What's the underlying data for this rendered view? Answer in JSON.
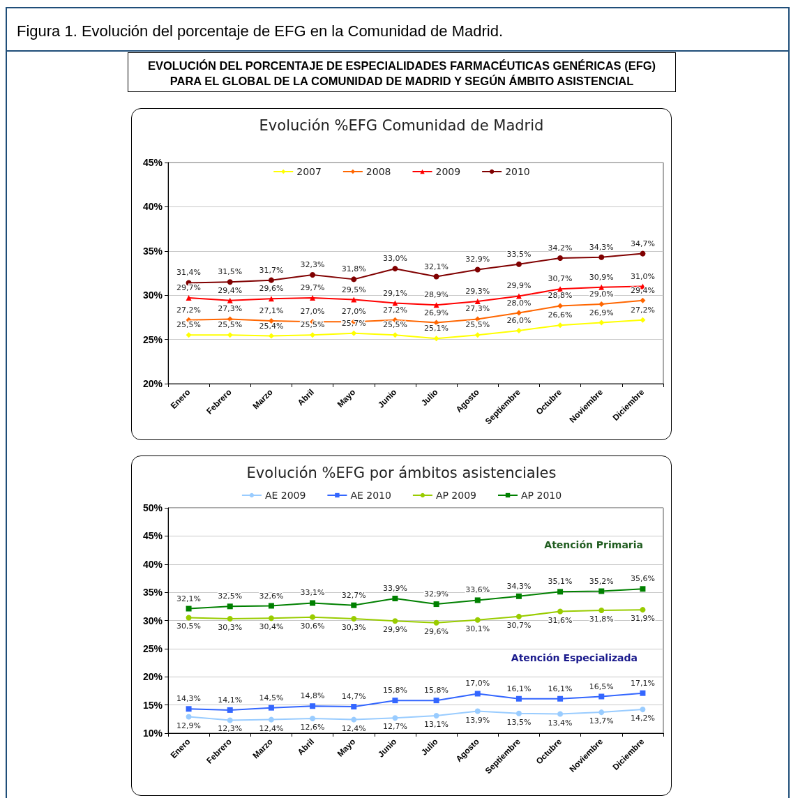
{
  "chart_data": [
    {
      "type": "line",
      "title": "Evolución %EFG Comunidad de Madrid",
      "annotations": [
        "Figura 1.  Evolución del porcentaje de EFG en la Comunidad de Madrid.",
        "EVOLUCIÓN DEL PORCENTAJE DE ESPECIALIDADES FARMACÉUTICAS GENÉRICAS (EFG) PARA EL GLOBAL DE LA COMUNIDAD DE MADRID Y SEGÚN ÁMBITO ASISTENCIAL"
      ],
      "categories": [
        "Enero",
        "Febrero",
        "Marzo",
        "Abril",
        "Mayo",
        "Junio",
        "Julio",
        "Agosto",
        "Septiembre",
        "Octubre",
        "Noviembre",
        "Diciembre"
      ],
      "ylim": [
        20,
        45
      ],
      "yticks": [
        {
          "value": 20,
          "label": "20%"
        },
        {
          "value": 25,
          "label": "25%"
        },
        {
          "value": 30,
          "label": "30%"
        },
        {
          "value": 35,
          "label": "35%"
        },
        {
          "value": 40,
          "label": "40%"
        },
        {
          "value": 45,
          "label": "45%"
        }
      ],
      "grid": "y",
      "legend": "top",
      "series": [
        {
          "name": "2007",
          "color": "#ffff00",
          "marker": "diamond",
          "values": [
            25.5,
            25.5,
            25.4,
            25.5,
            25.7,
            25.5,
            25.1,
            25.5,
            26.0,
            26.6,
            26.9,
            27.2
          ],
          "value_labels": [
            "25,5%",
            "25,5%",
            "25,4%",
            "25,5%",
            "25,7%",
            "25,5%",
            "25,1%",
            "25,5%",
            "26,0%",
            "26,6%",
            "26,9%",
            "27,2%"
          ]
        },
        {
          "name": "2008",
          "color": "#ff6600",
          "marker": "diamond",
          "values": [
            27.2,
            27.3,
            27.1,
            27.0,
            27.0,
            27.2,
            26.9,
            27.3,
            28.0,
            28.8,
            29.0,
            29.4
          ],
          "value_labels": [
            "27,2%",
            "27,3%",
            "27,1%",
            "27,0%",
            "27,0%",
            "27,2%",
            "26,9%",
            "27,3%",
            "28,0%",
            "28,8%",
            "29,0%",
            "29,4%"
          ]
        },
        {
          "name": "2009",
          "color": "#ff0000",
          "marker": "triangle",
          "values": [
            29.7,
            29.4,
            29.6,
            29.7,
            29.5,
            29.1,
            28.9,
            29.3,
            29.9,
            30.7,
            30.9,
            31.0
          ],
          "value_labels": [
            "29,7%",
            "29,4%",
            "29,6%",
            "29,7%",
            "29,5%",
            "29,1%",
            "28,9%",
            "29,3%",
            "29,9%",
            "30,7%",
            "30,9%",
            "31,0%"
          ]
        },
        {
          "name": "2010",
          "color": "#800000",
          "marker": "circle",
          "values": [
            31.4,
            31.5,
            31.7,
            32.3,
            31.8,
            33.0,
            32.1,
            32.9,
            33.5,
            34.2,
            34.3,
            34.7
          ],
          "value_labels": [
            "31,4%",
            "31,5%",
            "31,7%",
            "32,3%",
            "31,8%",
            "33,0%",
            "32,1%",
            "32,9%",
            "33,5%",
            "34,2%",
            "34,3%",
            "34,7%"
          ]
        }
      ]
    },
    {
      "type": "line",
      "title": "Evolución %EFG por ámbitos asistenciales",
      "annotations": [
        "Atención Primaria",
        "Atención Especializada"
      ],
      "categories": [
        "Enero",
        "Febrero",
        "Marzo",
        "Abril",
        "Mayo",
        "Junio",
        "Julio",
        "Agosto",
        "Septiembre",
        "Octubre",
        "Noviembre",
        "Diciembre"
      ],
      "ylim": [
        10,
        50
      ],
      "yticks": [
        {
          "value": 10,
          "label": "10%"
        },
        {
          "value": 15,
          "label": "15%"
        },
        {
          "value": 20,
          "label": "20%"
        },
        {
          "value": 25,
          "label": "25%"
        },
        {
          "value": 30,
          "label": "30%"
        },
        {
          "value": 35,
          "label": "35%"
        },
        {
          "value": 40,
          "label": "40%"
        },
        {
          "value": 45,
          "label": "45%"
        },
        {
          "value": 50,
          "label": "50%"
        }
      ],
      "grid": "y",
      "legend": "top",
      "series": [
        {
          "name": "AE 2009",
          "color": "#99ccff",
          "marker": "circle",
          "values": [
            12.9,
            12.3,
            12.4,
            12.6,
            12.4,
            12.7,
            13.1,
            13.9,
            13.5,
            13.4,
            13.7,
            14.2
          ],
          "value_labels": [
            "12,9%",
            "12,3%",
            "12,4%",
            "12,6%",
            "12,4%",
            "12,7%",
            "13,1%",
            "13,9%",
            "13,5%",
            "13,4%",
            "13,7%",
            "14,2%"
          ]
        },
        {
          "name": "AE 2010",
          "color": "#3366ff",
          "marker": "square",
          "values": [
            14.3,
            14.1,
            14.5,
            14.8,
            14.7,
            15.8,
            15.8,
            17.0,
            16.1,
            16.1,
            16.5,
            17.1
          ],
          "value_labels": [
            "14,3%",
            "14,1%",
            "14,5%",
            "14,8%",
            "14,7%",
            "15,8%",
            "15,8%",
            "17,0%",
            "16,1%",
            "16,1%",
            "16,5%",
            "17,1%"
          ]
        },
        {
          "name": "AP 2009",
          "color": "#99cc00",
          "marker": "circle",
          "values": [
            30.5,
            30.3,
            30.4,
            30.6,
            30.3,
            29.9,
            29.6,
            30.1,
            30.7,
            31.6,
            31.8,
            31.9
          ],
          "value_labels": [
            "30,5%",
            "30,3%",
            "30,4%",
            "30,6%",
            "30,3%",
            "29,9%",
            "29,6%",
            "30,1%",
            "30,7%",
            "31,6%",
            "31,8%",
            "31,9%"
          ]
        },
        {
          "name": "AP 2010",
          "color": "#008000",
          "marker": "square",
          "values": [
            32.1,
            32.5,
            32.6,
            33.1,
            32.7,
            33.9,
            32.9,
            33.6,
            34.3,
            35.1,
            35.2,
            35.6
          ],
          "value_labels": [
            "32,1%",
            "32,5%",
            "32,6%",
            "33,1%",
            "32,7%",
            "33,9%",
            "32,9%",
            "33,6%",
            "34,3%",
            "35,1%",
            "35,2%",
            "35,6%"
          ]
        }
      ]
    }
  ]
}
